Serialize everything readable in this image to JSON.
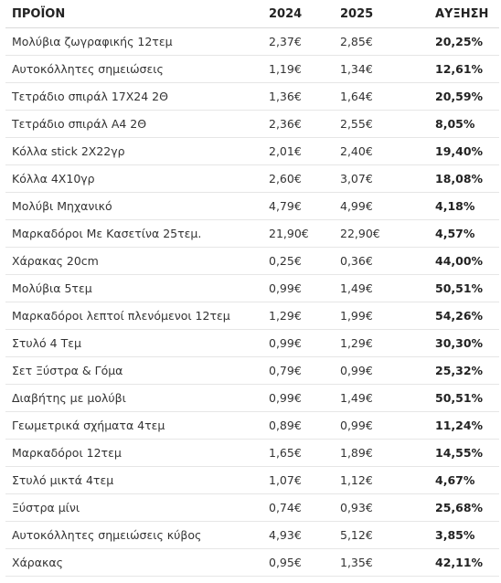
{
  "table": {
    "headers": {
      "product": "ΠΡΟΪΟΝ",
      "year_2024": "2024",
      "year_2025": "2025",
      "increase": "ΑΥΞΗΣΗ"
    },
    "rows": [
      {
        "product": "Μολύβια ζωγραφικής 12τεμ",
        "price_2024": "2,37€",
        "price_2025": "2,85€",
        "increase": "20,25%"
      },
      {
        "product": "Αυτοκόλλητες σημειώσεις",
        "price_2024": "1,19€",
        "price_2025": "1,34€",
        "increase": "12,61%"
      },
      {
        "product": "Τετράδιο σπιράλ 17Χ24 2Θ",
        "price_2024": "1,36€",
        "price_2025": "1,64€",
        "increase": "20,59%"
      },
      {
        "product": "Τετράδιο σπιράλ Α4 2Θ",
        "price_2024": "2,36€",
        "price_2025": "2,55€",
        "increase": "8,05%"
      },
      {
        "product": "Κόλλα stick 2Χ22γρ",
        "price_2024": "2,01€",
        "price_2025": "2,40€",
        "increase": "19,40%"
      },
      {
        "product": "Κόλλα 4Χ10γρ",
        "price_2024": "2,60€",
        "price_2025": "3,07€",
        "increase": "18,08%"
      },
      {
        "product": "Μολύβι Μηχανικό",
        "price_2024": "4,79€",
        "price_2025": "4,99€",
        "increase": "4,18%"
      },
      {
        "product": "Μαρκαδόροι Με Κασετίνα 25τεμ.",
        "price_2024": "21,90€",
        "price_2025": "22,90€",
        "increase": "4,57%"
      },
      {
        "product": "Χάρακας 20cm",
        "price_2024": "0,25€",
        "price_2025": "0,36€",
        "increase": "44,00%"
      },
      {
        "product": "Μολύβια 5τεμ",
        "price_2024": "0,99€",
        "price_2025": "1,49€",
        "increase": "50,51%"
      },
      {
        "product": "Μαρκαδόροι λεπτοί πλενόμενοι 12τεμ",
        "price_2024": "1,29€",
        "price_2025": "1,99€",
        "increase": "54,26%"
      },
      {
        "product": "Στυλό 4 Τεμ",
        "price_2024": "0,99€",
        "price_2025": "1,29€",
        "increase": "30,30%"
      },
      {
        "product": "Σετ Ξύστρα & Γόμα",
        "price_2024": "0,79€",
        "price_2025": "0,99€",
        "increase": "25,32%"
      },
      {
        "product": "Διαβήτης με μολύβι",
        "price_2024": "0,99€",
        "price_2025": "1,49€",
        "increase": "50,51%"
      },
      {
        "product": "Γεωμετρικά σχήματα  4τεμ",
        "price_2024": "0,89€",
        "price_2025": "0,99€",
        "increase": "11,24%"
      },
      {
        "product": "Μαρκαδόροι 12τεμ",
        "price_2024": "1,65€",
        "price_2025": "1,89€",
        "increase": "14,55%"
      },
      {
        "product": "Στυλό μικτά 4τεμ",
        "price_2024": "1,07€",
        "price_2025": "1,12€",
        "increase": "4,67%"
      },
      {
        "product": "Ξύστρα μίνι",
        "price_2024": "0,74€",
        "price_2025": "0,93€",
        "increase": "25,68%"
      },
      {
        "product": "Αυτοκόλλητες σημειώσεις κύβος",
        "price_2024": "4,93€",
        "price_2025": "5,12€",
        "increase": "3,85%"
      },
      {
        "product": "Χάρακας",
        "price_2024": "0,95€",
        "price_2025": "1,35€",
        "increase": "42,11%"
      }
    ]
  }
}
